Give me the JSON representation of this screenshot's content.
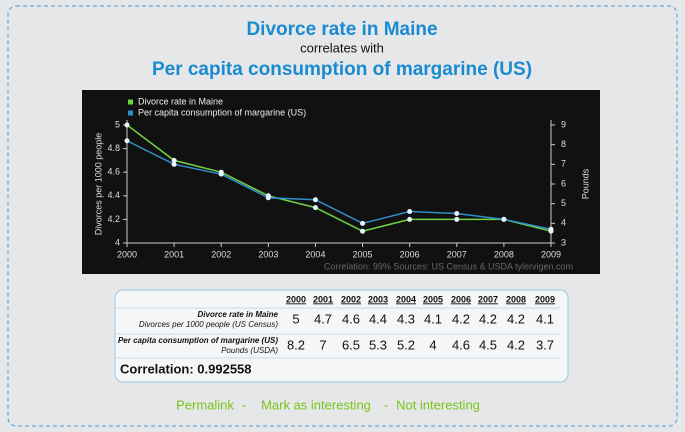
{
  "header": {
    "title": "Divorce rate in Maine",
    "connector": "correlates with",
    "subtitle": "Per capita consumption of margarine (US)"
  },
  "chart_data": {
    "type": "line",
    "categories": [
      "2000",
      "2001",
      "2002",
      "2003",
      "2004",
      "2005",
      "2006",
      "2007",
      "2008",
      "2009"
    ],
    "series": [
      {
        "name": "Divorce rate in Maine",
        "color": "#6fd43f",
        "values": [
          5,
          4.7,
          4.6,
          4.4,
          4.3,
          4.1,
          4.2,
          4.2,
          4.2,
          4.1
        ]
      },
      {
        "name": "Per capita consumption of margarine (US)",
        "color": "#2f8fcc",
        "axis": "y2",
        "values": [
          8.2,
          7,
          6.5,
          5.3,
          5.2,
          4,
          4.6,
          4.5,
          4.2,
          3.7
        ]
      }
    ],
    "ylabel": "Divorces per 1000 people",
    "y2label": "Pounds",
    "ylim": [
      4,
      5
    ],
    "yticks": [
      4,
      4.2,
      4.4,
      4.6,
      4.8,
      5
    ],
    "y2lim": [
      3,
      9
    ],
    "y2ticks": [
      3,
      4,
      5,
      6,
      7,
      8,
      9
    ],
    "legend": "top-left",
    "footer": "Correlation: 99%    Sources: US Census & USDA    tylervigen.com"
  },
  "table": {
    "row_units": [
      "Divorces per 1000 people (US Census)",
      "Pounds (USDA)"
    ],
    "correlation": "Correlation: 0.992558"
  },
  "links": {
    "permalink": "Permalink",
    "separator": "-",
    "interesting": "Mark as interesting",
    "not_interesting": "Not interesting"
  }
}
